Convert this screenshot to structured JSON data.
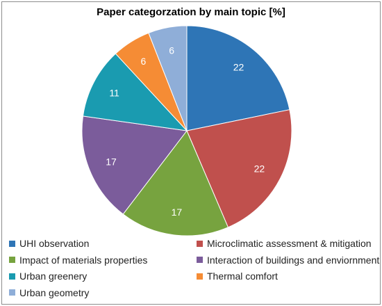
{
  "chart_data": {
    "type": "pie",
    "title": "Paper categorzation by main topic [%]",
    "categories": [
      "UHI observation",
      "Microclimatic assessment & mitigation",
      "Impact of materials properties",
      "Interaction of buildings and enviornment",
      "Urban greenery",
      "Thermal comfort",
      "Urban geometry"
    ],
    "values": [
      22,
      22,
      17,
      17,
      11,
      6,
      6
    ],
    "colors": [
      "#2e75b6",
      "#c0504d",
      "#77a33f",
      "#7b5c9b",
      "#1a9bb0",
      "#f58c35",
      "#8faed8"
    ],
    "legend": "bottom"
  }
}
